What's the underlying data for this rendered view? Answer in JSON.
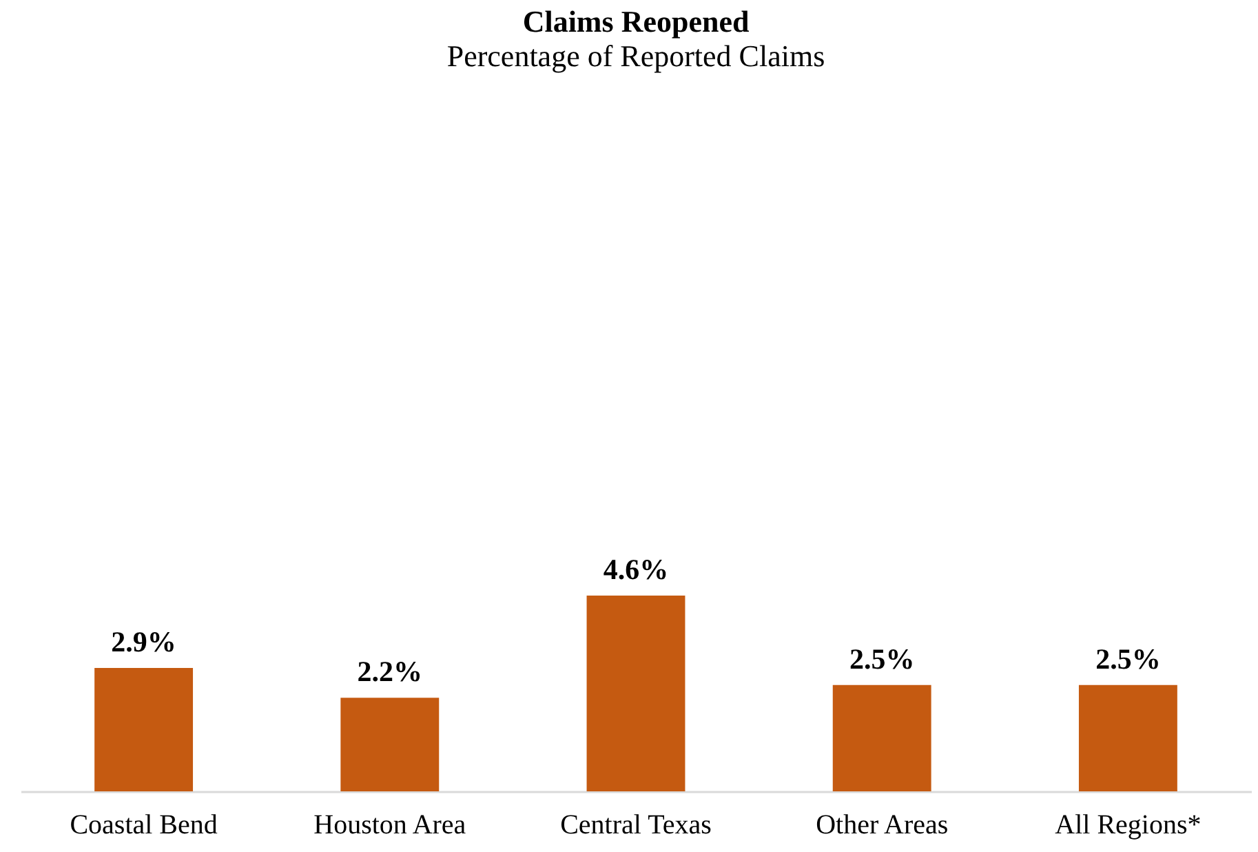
{
  "chart_data": {
    "type": "bar",
    "title": "Claims Reopened",
    "subtitle": "Percentage of Reported Claims",
    "categories": [
      "Coastal Bend",
      "Houston Area",
      "Central Texas",
      "Other Areas",
      "All Regions*"
    ],
    "values": [
      2.9,
      2.2,
      4.6,
      2.5,
      2.5
    ],
    "value_labels": [
      "2.9%",
      "2.2%",
      "4.6%",
      "2.5%",
      "2.5%"
    ],
    "color": "#c55a11"
  }
}
